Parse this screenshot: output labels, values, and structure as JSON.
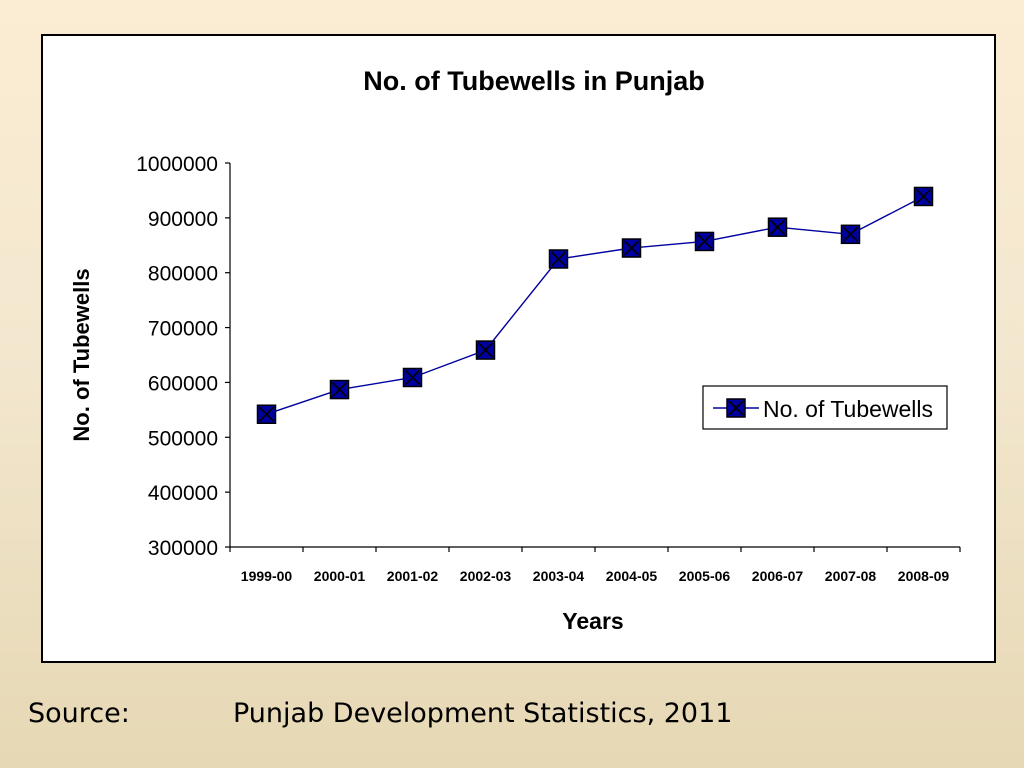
{
  "chart_data": {
    "type": "line",
    "title": "No. of Tubewells in Punjab",
    "xlabel": "Years",
    "ylabel": "No. of Tubewells",
    "categories": [
      "1999-00",
      "2000-01",
      "2001-02",
      "2002-03",
      "2003-04",
      "2004-05",
      "2005-06",
      "2006-07",
      "2007-08",
      "2008-09"
    ],
    "series": [
      {
        "name": "No. of Tubewells",
        "values": [
          542000,
          587000,
          609000,
          659000,
          825000,
          845000,
          857000,
          883000,
          870000,
          939000
        ],
        "color": "#0000a0",
        "marker": "square-x"
      }
    ],
    "ylim": [
      300000,
      1000000
    ],
    "yticks": [
      300000,
      400000,
      500000,
      600000,
      700000,
      800000,
      900000,
      1000000
    ],
    "grid": false,
    "legend_position": "right"
  },
  "source": {
    "label": "Source:",
    "text": "Punjab Development Statistics, 2011"
  }
}
